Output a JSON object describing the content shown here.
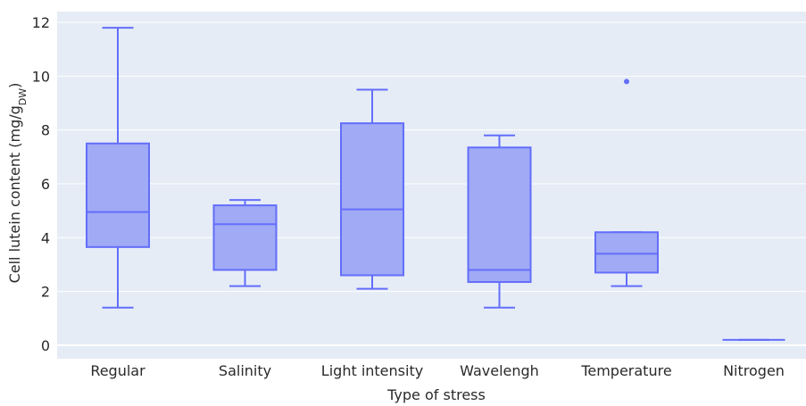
{
  "chart_data": {
    "type": "box",
    "xlabel": "Type of stress",
    "ylabel": "Cell lutein content (mg/g",
    "ylabel_sub": "DW",
    "ylabel_suffix": ")",
    "ylim": [
      -0.5,
      12.4
    ],
    "yticks": [
      "0",
      "2",
      "4",
      "6",
      "8",
      "10",
      "12"
    ],
    "grid": true,
    "colors": {
      "plot_bg": "#e5ecf6",
      "grid": "#ffffff",
      "box_fill": "#a0aaf5",
      "box_line": "#636efa"
    },
    "categories": [
      "Regular",
      "Salinity",
      "Light intensity",
      "Wavelengh",
      "Temperature",
      "Nitrogen"
    ],
    "boxes": [
      {
        "min": 1.4,
        "q1": 3.65,
        "median": 4.95,
        "q3": 7.5,
        "max": 11.8,
        "outliers": []
      },
      {
        "min": 2.2,
        "q1": 2.8,
        "median": 4.5,
        "q3": 5.2,
        "max": 5.4,
        "outliers": []
      },
      {
        "min": 2.1,
        "q1": 2.6,
        "median": 5.05,
        "q3": 8.25,
        "max": 9.5,
        "outliers": []
      },
      {
        "min": 1.4,
        "q1": 2.35,
        "median": 2.8,
        "q3": 7.35,
        "max": 7.8,
        "outliers": []
      },
      {
        "min": 2.2,
        "q1": 2.7,
        "median": 3.4,
        "q3": 4.2,
        "max": 4.2,
        "outliers": [
          9.8
        ]
      },
      {
        "min": 0.2,
        "q1": 0.2,
        "median": 0.2,
        "q3": 0.2,
        "max": 0.2,
        "outliers": []
      }
    ]
  }
}
